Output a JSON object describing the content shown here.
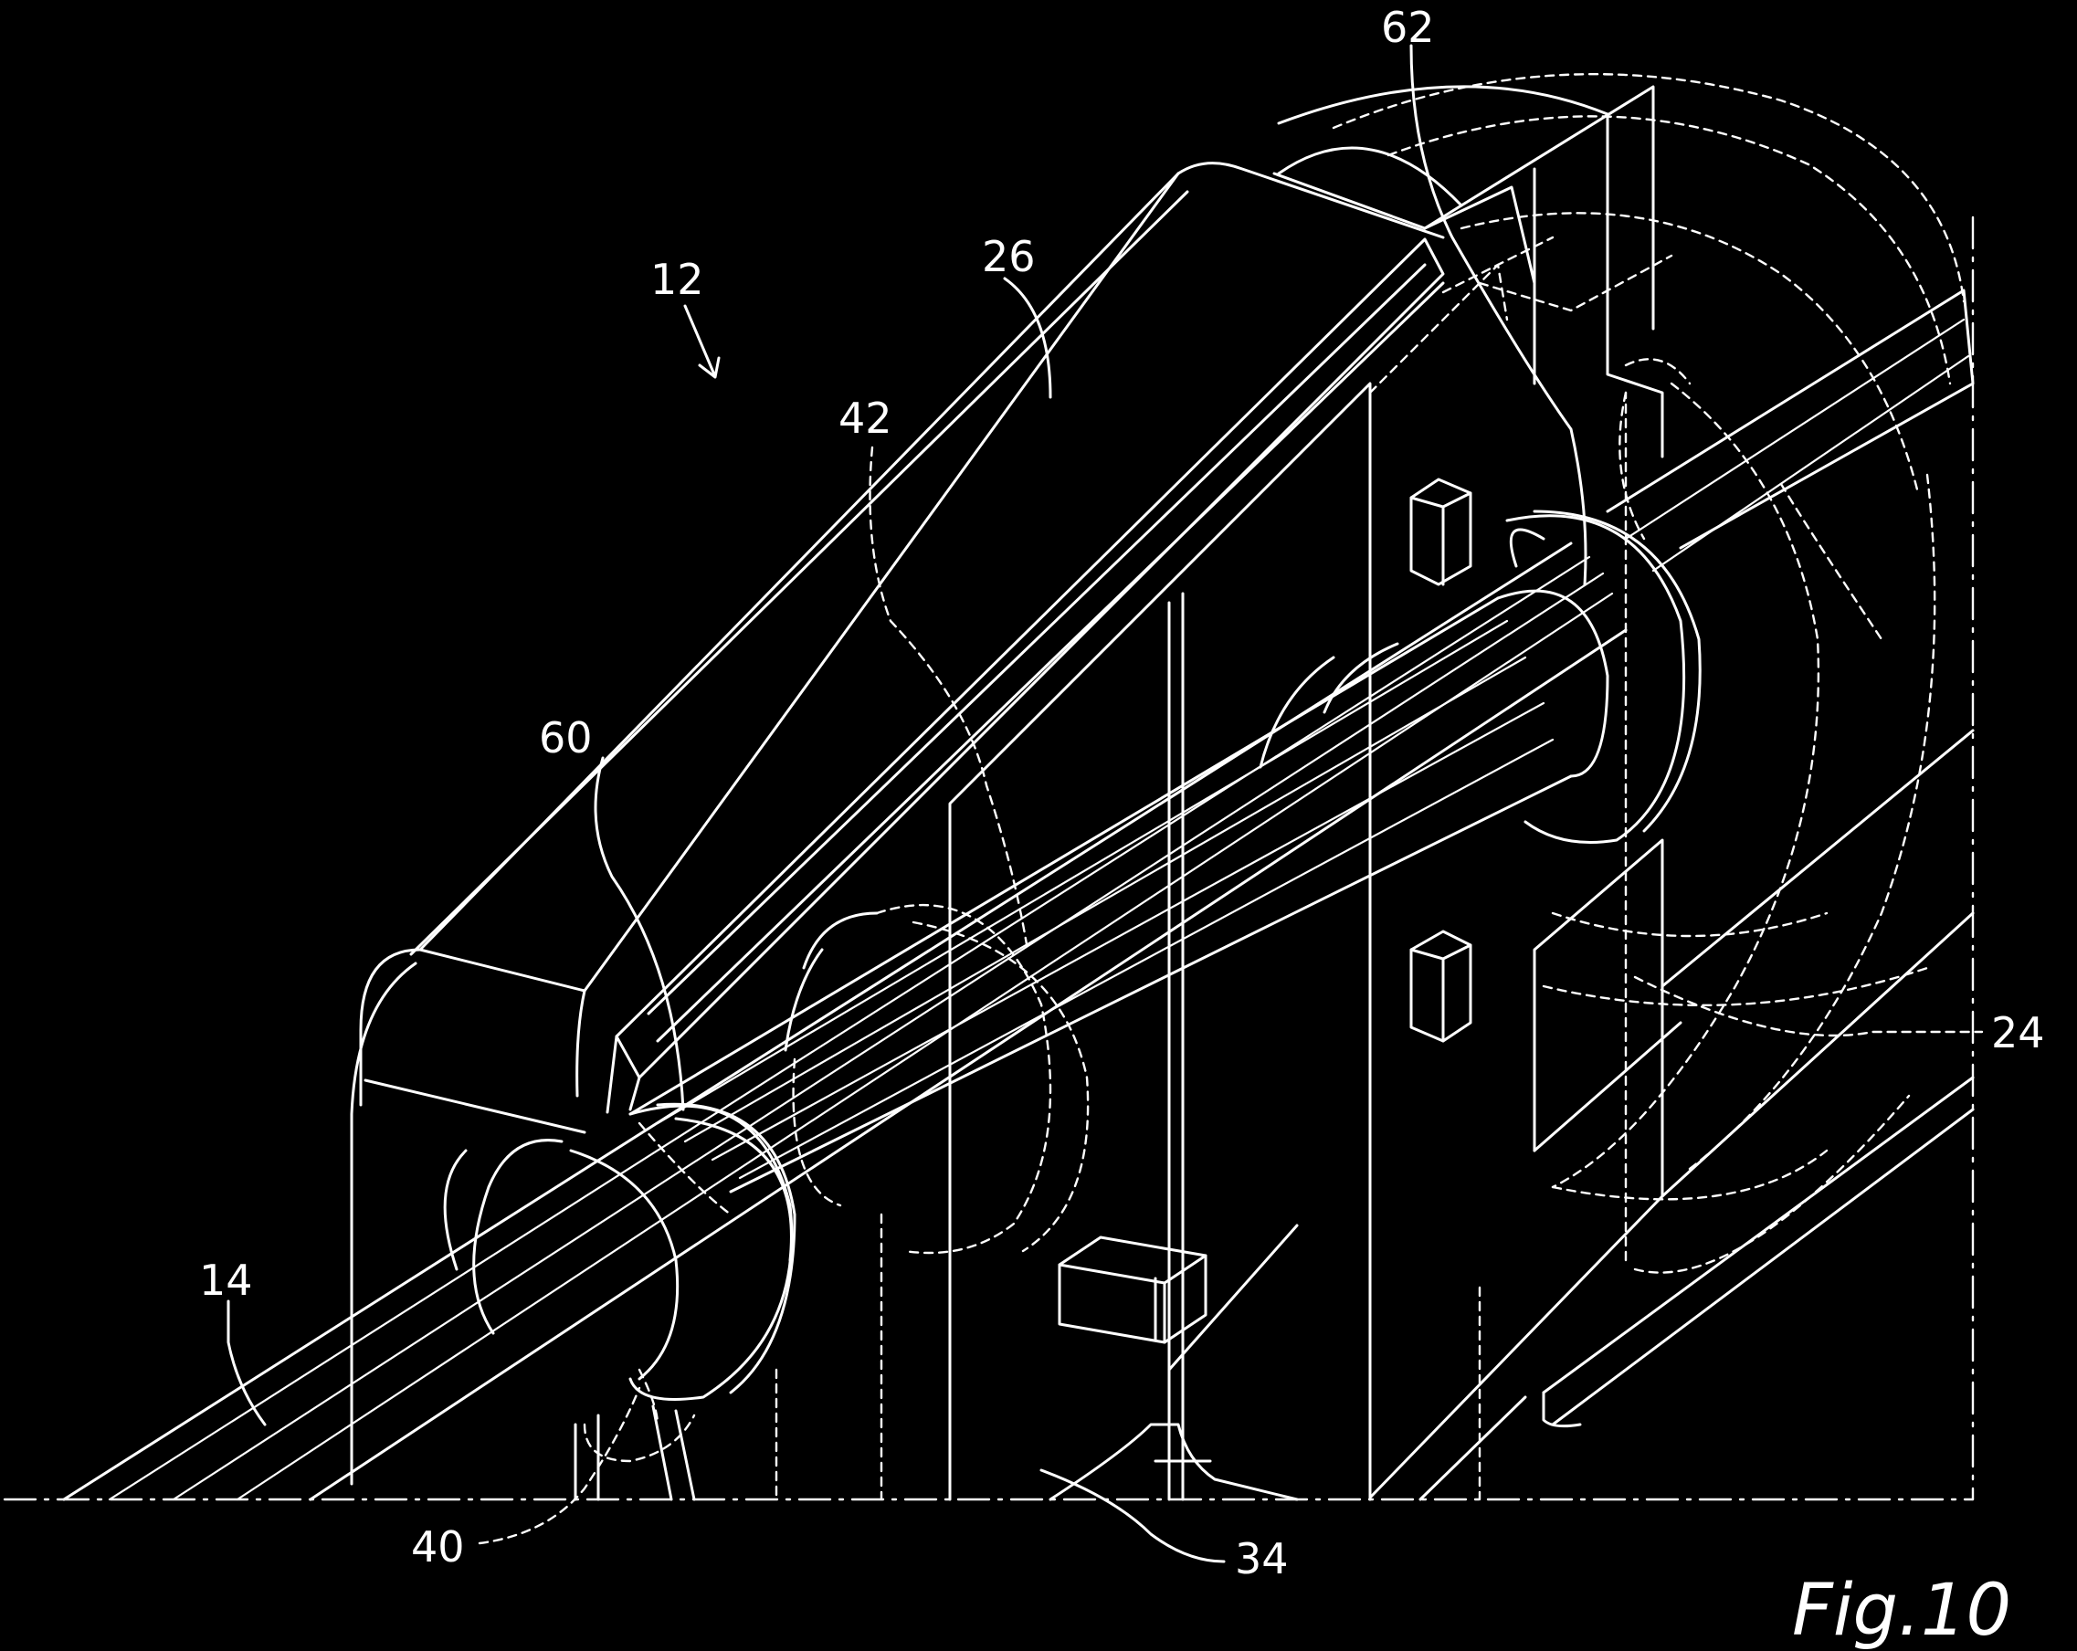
{
  "figure": {
    "caption": "Fig.10",
    "labels": {
      "l12": "12",
      "l14": "14",
      "l24": "24",
      "l26": "26",
      "l34": "34",
      "l40": "40",
      "l42": "42",
      "l60": "60",
      "l62": "62"
    }
  },
  "colors": {
    "background": "#000000",
    "lines": "#ffffff"
  }
}
